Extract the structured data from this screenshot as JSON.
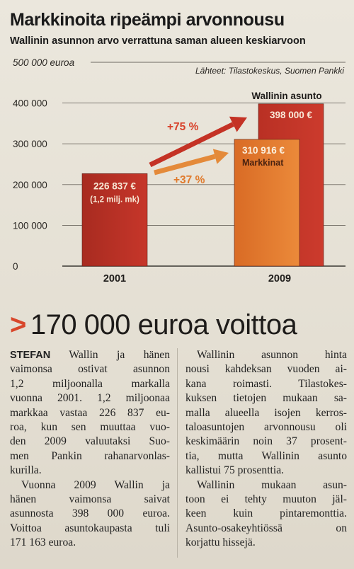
{
  "article": {
    "headline": "Markkinoita ripeämpi arvonnousu",
    "subheadline": "Wallinin asunnon arvo verrattuna saman alueen keskiarvoon",
    "title": "170 000 euroa voittoa",
    "title_marker": ">",
    "lead_name": "STEFAN",
    "left_column": [
      [
        "STEFAN Wallin ja hänen",
        "vaimonsa ostivat asunnon",
        "1,2 miljoonalla markalla",
        "vuonna 2001. 1,2 miljoonaa",
        "markkaa vastaa 226 837 eu-",
        "roa, kun sen muuttaa vuo-",
        "den 2009 valuutaksi Suo-",
        "men Pankin rahanarvonlas-",
        "kurilla."
      ],
      [
        "Vuonna 2009 Wallin ja",
        "hänen vaimonsa saivat",
        "asunnosta 398 000 euroa.",
        "Voittoa asuntokaupasta tuli",
        "171 163 euroa."
      ]
    ],
    "right_column": [
      [
        "Wallinin asunnon hinta",
        "nousi kahdeksan vuoden ai-",
        "kana roimasti. Tilastokes-",
        "kuksen tietojen mukaan sa-",
        "malla alueella isojen kerros-",
        "taloasuntojen arvonnousu oli",
        "keskimäärin noin 37 prosent-",
        "tia, mutta Wallinin asunto",
        "kallistui 75 prosenttia."
      ],
      [
        "Wallinin mukaan asun-",
        "toon ei tehty muuton jäl-",
        "keen kuin pintaremonttia.",
        "Asunto-osakeyhtiössä on",
        "korjattu hissejä."
      ]
    ]
  },
  "chart_data": {
    "type": "bar",
    "source": "Lähteet: Tilastokeskus, Suomen Pankki",
    "y_tick_labels": [
      "0",
      "100 000",
      "200 000",
      "300 000",
      "400 000",
      "500 000 euroa"
    ],
    "y_ticks": [
      0,
      100000,
      200000,
      300000,
      400000,
      500000
    ],
    "ylim": [
      0,
      500000
    ],
    "categories": [
      "2001",
      "2009"
    ],
    "grid": true,
    "bars": [
      {
        "category": "2001",
        "value": 226837,
        "label": "226 837 €",
        "sublabel": "(1,2 milj. mk)",
        "color": "#b02f22"
      },
      {
        "category": "2009",
        "value": 310916,
        "label": "310 916 €",
        "sublabel": "Markkinat",
        "color": "#e0782c"
      },
      {
        "category": "2009",
        "value": 398000,
        "label": "398 000 €",
        "sublabel": "Wallinin asunto",
        "color": "#c3352a"
      }
    ],
    "annotations": [
      {
        "text": "+75 %",
        "color": "#d8412a"
      },
      {
        "text": "+37 %",
        "color": "#e07a2c"
      }
    ]
  },
  "colors": {
    "accent_red": "#c3352a",
    "accent_orange": "#e0782c",
    "dark_red": "#b02f22"
  }
}
